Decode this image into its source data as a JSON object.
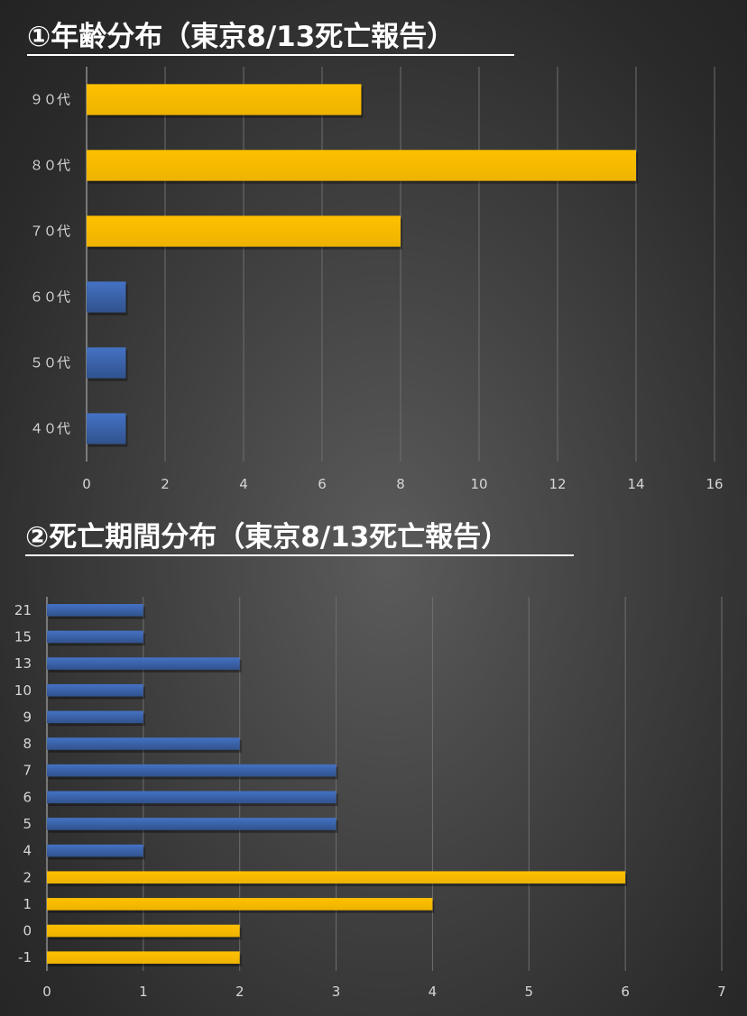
{
  "chart_data": [
    {
      "type": "bar",
      "orientation": "horizontal",
      "title": "①年齢分布（東京8/13死亡報告）",
      "categories": [
        "９０代",
        "８０代",
        "７０代",
        "６０代",
        "５０代",
        "４０代"
      ],
      "values": [
        7,
        14,
        8,
        1,
        1,
        1
      ],
      "bar_colors": [
        "#FFC000",
        "#FFC000",
        "#FFC000",
        "#4472C4",
        "#4472C4",
        "#4472C4"
      ],
      "xlim": [
        0,
        16
      ],
      "xticks": [
        0,
        2,
        4,
        6,
        8,
        10,
        12,
        14,
        16
      ],
      "grid": true
    },
    {
      "type": "bar",
      "orientation": "horizontal",
      "title": "②死亡期間分布（東京8/13死亡報告）",
      "categories": [
        "21",
        "15",
        "13",
        "10",
        "9",
        "8",
        "7",
        "6",
        "5",
        "4",
        "2",
        "1",
        "0",
        "-1"
      ],
      "values": [
        1,
        1,
        2,
        1,
        1,
        2,
        3,
        3,
        3,
        1,
        6,
        4,
        2,
        2
      ],
      "bar_colors": [
        "#4472C4",
        "#4472C4",
        "#4472C4",
        "#4472C4",
        "#4472C4",
        "#4472C4",
        "#4472C4",
        "#4472C4",
        "#4472C4",
        "#4472C4",
        "#FFC000",
        "#FFC000",
        "#FFC000",
        "#FFC000"
      ],
      "xlim": [
        0,
        7
      ],
      "xticks": [
        0,
        1,
        2,
        3,
        4,
        5,
        6,
        7
      ],
      "grid": true
    }
  ]
}
